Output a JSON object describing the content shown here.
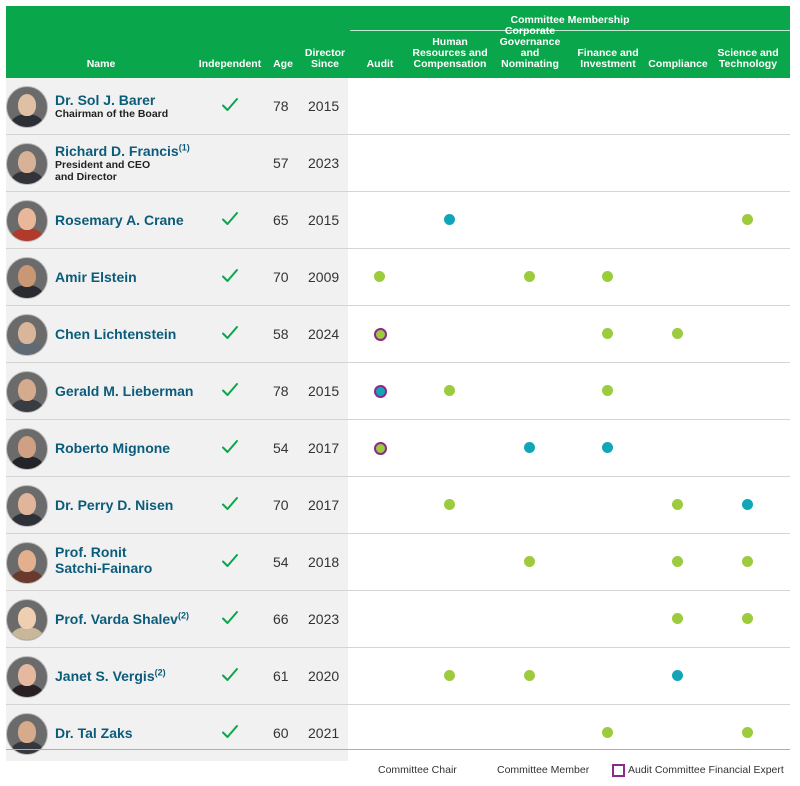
{
  "header": {
    "committee_membership": "Committee Membership",
    "name": "Name",
    "independent": "Independent",
    "age": "Age",
    "director_since": [
      "Director",
      "Since"
    ],
    "committees": [
      [
        "Audit"
      ],
      [
        "Human",
        "Resources and",
        "Compensation"
      ],
      [
        "Corporate",
        "Governance and",
        "Nominating"
      ],
      [
        "Finance and",
        "Investment"
      ],
      [
        "Compliance"
      ],
      [
        "Science and",
        "Technology"
      ]
    ]
  },
  "directors": [
    {
      "name": "Dr. Sol J. Barer",
      "sup": "",
      "title": [
        "Chairman of the Board"
      ],
      "independent": true,
      "age": "78",
      "since": "2015",
      "committees": [
        "",
        "",
        "",
        "",
        "",
        ""
      ],
      "skin": "#e0c0a4",
      "suit": "#2d2f36"
    },
    {
      "name": "Richard D. Francis",
      "sup": "(1)",
      "title": [
        "President and CEO",
        "and Director"
      ],
      "independent": false,
      "age": "57",
      "since": "2023",
      "committees": [
        "",
        "",
        "",
        "",
        "",
        ""
      ],
      "skin": "#d8b296",
      "suit": "#33343a"
    },
    {
      "name": "Rosemary A. Crane",
      "sup": "",
      "title": [],
      "independent": true,
      "age": "65",
      "since": "2015",
      "committees": [
        "",
        "chair",
        "",
        "",
        "",
        "member"
      ],
      "skin": "#e9b89a",
      "suit": "#b23a2a"
    },
    {
      "name": "Amir Elstein",
      "sup": "",
      "title": [],
      "independent": true,
      "age": "70",
      "since": "2009",
      "committees": [
        "member",
        "",
        "member",
        "member",
        "",
        ""
      ],
      "skin": "#c99774",
      "suit": "#2a2b30"
    },
    {
      "name": "Chen Lichtenstein",
      "sup": "",
      "title": [],
      "independent": true,
      "age": "58",
      "since": "2024",
      "committees": [
        "member-expert",
        "",
        "",
        "member",
        "member",
        ""
      ],
      "skin": "#d9b59a",
      "suit": "#5f6a75"
    },
    {
      "name": "Gerald M. Lieberman",
      "sup": "",
      "title": [],
      "independent": true,
      "age": "78",
      "since": "2015",
      "committees": [
        "chair-expert",
        "member",
        "",
        "member",
        "",
        ""
      ],
      "skin": "#d5ab8e",
      "suit": "#3a3c44"
    },
    {
      "name": "Roberto Mignone",
      "sup": "",
      "title": [],
      "independent": true,
      "age": "54",
      "since": "2017",
      "committees": [
        "member-expert",
        "",
        "chair",
        "chair",
        "",
        ""
      ],
      "skin": "#cfa083",
      "suit": "#23242a"
    },
    {
      "name": "Dr. Perry D. Nisen",
      "sup": "",
      "title": [],
      "independent": true,
      "age": "70",
      "since": "2017",
      "committees": [
        "",
        "member",
        "",
        "",
        "member",
        "chair"
      ],
      "skin": "#e1b59a",
      "suit": "#2f3138"
    },
    {
      "name": "Prof. Ronit",
      "name2": "Satchi-Fainaro",
      "sup": "",
      "title": [],
      "independent": true,
      "age": "54",
      "since": "2018",
      "committees": [
        "",
        "",
        "member",
        "",
        "member",
        "member"
      ],
      "skin": "#e2b08e",
      "suit": "#6a3a2c"
    },
    {
      "name": "Prof. Varda Shalev",
      "sup": "(2)",
      "title": [],
      "independent": true,
      "age": "66",
      "since": "2023",
      "committees": [
        "",
        "",
        "",
        "",
        "member",
        "member"
      ],
      "skin": "#efcfb2",
      "suit": "#c9b79a"
    },
    {
      "name": "Janet S. Vergis",
      "sup": "(2)",
      "title": [],
      "independent": true,
      "age": "61",
      "since": "2020",
      "committees": [
        "",
        "member",
        "member",
        "",
        "chair",
        ""
      ],
      "skin": "#e5b9a0",
      "suit": "#2a2024"
    },
    {
      "name": "Dr. Tal Zaks",
      "sup": "",
      "title": [],
      "independent": true,
      "age": "60",
      "since": "2021",
      "committees": [
        "",
        "",
        "",
        "member",
        "",
        "member"
      ],
      "skin": "#d6ab8c",
      "suit": "#35373e"
    }
  ],
  "legend": [
    {
      "key": "chair",
      "label": "Committee Chair"
    },
    {
      "key": "member",
      "label": "Committee Member"
    },
    {
      "key": "expert",
      "label": "Audit Committee Financial Expert"
    }
  ],
  "colors": {
    "header_green": "#0aa64b",
    "check_green": "#0aa64b",
    "member_dot": "#9ccb3d",
    "chair_dot": "#10a6b8",
    "expert_ring": "#8b2a8a",
    "name_blue": "#0b5c7a"
  }
}
